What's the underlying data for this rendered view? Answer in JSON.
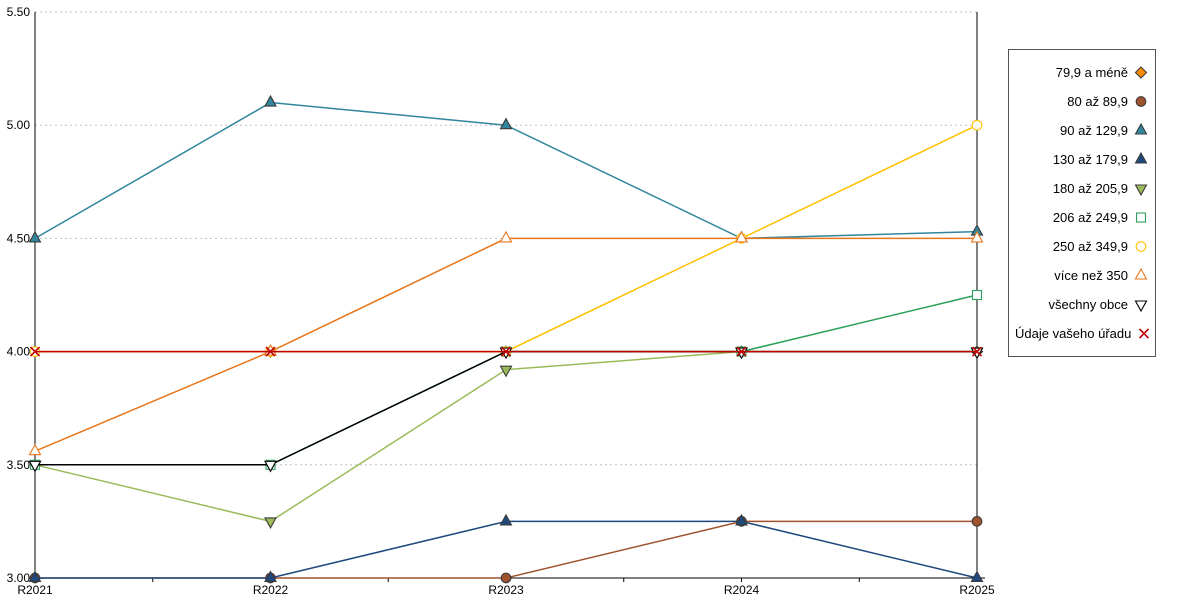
{
  "chart_data": {
    "type": "line",
    "title": "",
    "xlabel": "",
    "ylabel": "",
    "x_categories": [
      "R2021",
      "R2022",
      "R2023",
      "R2024",
      "R2025"
    ],
    "ylim": [
      3.0,
      5.5
    ],
    "y_tick_values": [
      3.0,
      3.5,
      4.0,
      4.5,
      5.0,
      5.5
    ],
    "y_tick_labels": [
      "3.00",
      "3.50",
      "4.00",
      "4.50",
      "5.00",
      "5.50"
    ],
    "grid": "horizontal-dashed",
    "legend_position": "right",
    "series": [
      {
        "name": "79,9 a méně",
        "color": "#FF8C00",
        "marker": "diamond",
        "marker_fill": "filled",
        "values": [
          4.0,
          4.0,
          4.0,
          4.0,
          4.0
        ]
      },
      {
        "name": "80 až 89,9",
        "color": "#A0522D",
        "marker": "circle",
        "marker_fill": "filled",
        "values": [
          3.0,
          3.0,
          3.0,
          3.25,
          3.25
        ]
      },
      {
        "name": "90 až 129,9",
        "color": "#31859C",
        "marker": "triangle-up",
        "marker_fill": "filled",
        "values": [
          4.5,
          5.1,
          5.0,
          4.5,
          4.53
        ]
      },
      {
        "name": "130 až 179,9",
        "color": "#1F497D",
        "marker": "triangle-up",
        "marker_fill": "filled",
        "values": [
          3.0,
          3.0,
          3.25,
          3.25,
          3.0
        ]
      },
      {
        "name": "180 až 205,9",
        "color": "#9BBB59",
        "marker": "triangle-down",
        "marker_fill": "filled",
        "values": [
          3.5,
          3.25,
          3.92,
          4.0,
          4.0
        ]
      },
      {
        "name": "206 až 249,9",
        "color": "#2CA05A",
        "marker": "square",
        "marker_fill": "open",
        "values": [
          3.5,
          3.5,
          4.0,
          4.0,
          4.25
        ]
      },
      {
        "name": "250 až 349,9",
        "color": "#FFC000",
        "marker": "circle",
        "marker_fill": "open",
        "values": [
          4.0,
          4.0,
          4.0,
          4.5,
          5.0
        ]
      },
      {
        "name": "více než 350",
        "color": "#E8761B",
        "marker": "triangle-up",
        "marker_fill": "open",
        "values": [
          3.56,
          4.0,
          4.5,
          4.5,
          4.5
        ]
      },
      {
        "name": "všechny obce",
        "color": "#000000",
        "marker": "triangle-down",
        "marker_fill": "open",
        "values": [
          3.5,
          3.5,
          4.0,
          4.0,
          4.0
        ]
      },
      {
        "name": "Údaje vašeho úřadu",
        "color": "#C00000",
        "marker": "x",
        "marker_fill": "open",
        "values": [
          4.0,
          4.0,
          4.0,
          4.0,
          4.0
        ]
      }
    ]
  }
}
